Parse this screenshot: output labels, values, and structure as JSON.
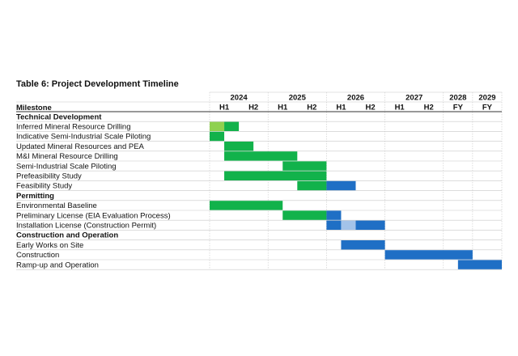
{
  "chart_data": {
    "type": "gantt",
    "title": "Table 6: Project Development Timeline",
    "milestone_header": "Milestone",
    "years": [
      {
        "label": "2024",
        "periods": [
          "H1",
          "H2"
        ]
      },
      {
        "label": "2025",
        "periods": [
          "H1",
          "H2"
        ]
      },
      {
        "label": "2026",
        "periods": [
          "H1",
          "H2"
        ]
      },
      {
        "label": "2027",
        "periods": [
          "H1",
          "H2"
        ]
      },
      {
        "label": "2028",
        "periods": [
          "FY"
        ]
      },
      {
        "label": "2029",
        "periods": [
          "FY"
        ]
      }
    ],
    "period_unit": "quarter",
    "colors": {
      "green": "#12b24b",
      "light_green": "#8fd14f",
      "blue": "#1f6fc5",
      "light_blue": "#a3c3e9",
      "grid": "#c8c8c8"
    },
    "sections": [
      {
        "title": "Technical Development",
        "tasks": [
          {
            "name": "Inferred Mineral Resource Drilling",
            "segments": [
              {
                "start": 0,
                "end": 1,
                "color": "light_green"
              },
              {
                "start": 1,
                "end": 2,
                "color": "green"
              }
            ]
          },
          {
            "name": "Indicative Semi-Industrial Scale Piloting",
            "segments": [
              {
                "start": 0,
                "end": 1,
                "color": "green"
              }
            ]
          },
          {
            "name": "Updated Mineral Resources and PEA",
            "segments": [
              {
                "start": 1,
                "end": 3,
                "color": "green"
              }
            ]
          },
          {
            "name": "M&I Mineral Resource Drilling",
            "segments": [
              {
                "start": 1,
                "end": 6,
                "color": "green"
              }
            ]
          },
          {
            "name": "Semi-Industrial Scale Piloting",
            "segments": [
              {
                "start": 5,
                "end": 8,
                "color": "green"
              }
            ]
          },
          {
            "name": "Prefeasibility Study",
            "segments": [
              {
                "start": 1,
                "end": 8,
                "color": "green"
              }
            ]
          },
          {
            "name": "Feasibility Study",
            "segments": [
              {
                "start": 6,
                "end": 8,
                "color": "green"
              },
              {
                "start": 8,
                "end": 10,
                "color": "blue"
              }
            ]
          }
        ]
      },
      {
        "title": "Permitting",
        "tasks": [
          {
            "name": "Environmental Baseline",
            "segments": [
              {
                "start": 0,
                "end": 5,
                "color": "green"
              }
            ]
          },
          {
            "name": "Preliminary License (EIA Evaluation Process)",
            "segments": [
              {
                "start": 5,
                "end": 8,
                "color": "green"
              },
              {
                "start": 8,
                "end": 9,
                "color": "blue"
              }
            ]
          },
          {
            "name": "Installation License (Construction Permit)",
            "segments": [
              {
                "start": 8,
                "end": 9,
                "color": "blue"
              },
              {
                "start": 9,
                "end": 10,
                "color": "light_blue"
              },
              {
                "start": 10,
                "end": 12,
                "color": "blue"
              }
            ]
          }
        ]
      },
      {
        "title": "Construction and Operation",
        "tasks": [
          {
            "name": "Early Works on Site",
            "segments": [
              {
                "start": 9,
                "end": 12,
                "color": "blue"
              }
            ]
          },
          {
            "name": "Construction",
            "segments": [
              {
                "start": 12,
                "end": 18,
                "color": "blue"
              }
            ]
          },
          {
            "name": "Ramp-up and Operation",
            "segments": [
              {
                "start": 17,
                "end": 20,
                "color": "blue"
              }
            ]
          }
        ]
      }
    ]
  }
}
